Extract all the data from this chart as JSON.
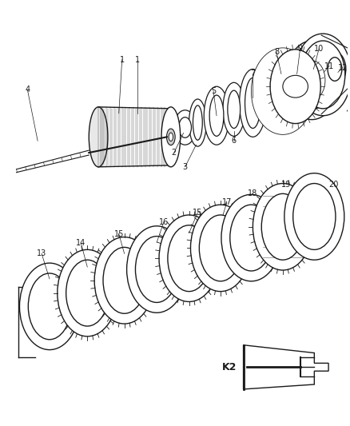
{
  "bg_color": "#ffffff",
  "figsize": [
    4.38,
    5.33
  ],
  "dpi": 100,
  "line_color": "#1a1a1a",
  "label_fontsize": 7.0,
  "k2_label": "K2"
}
